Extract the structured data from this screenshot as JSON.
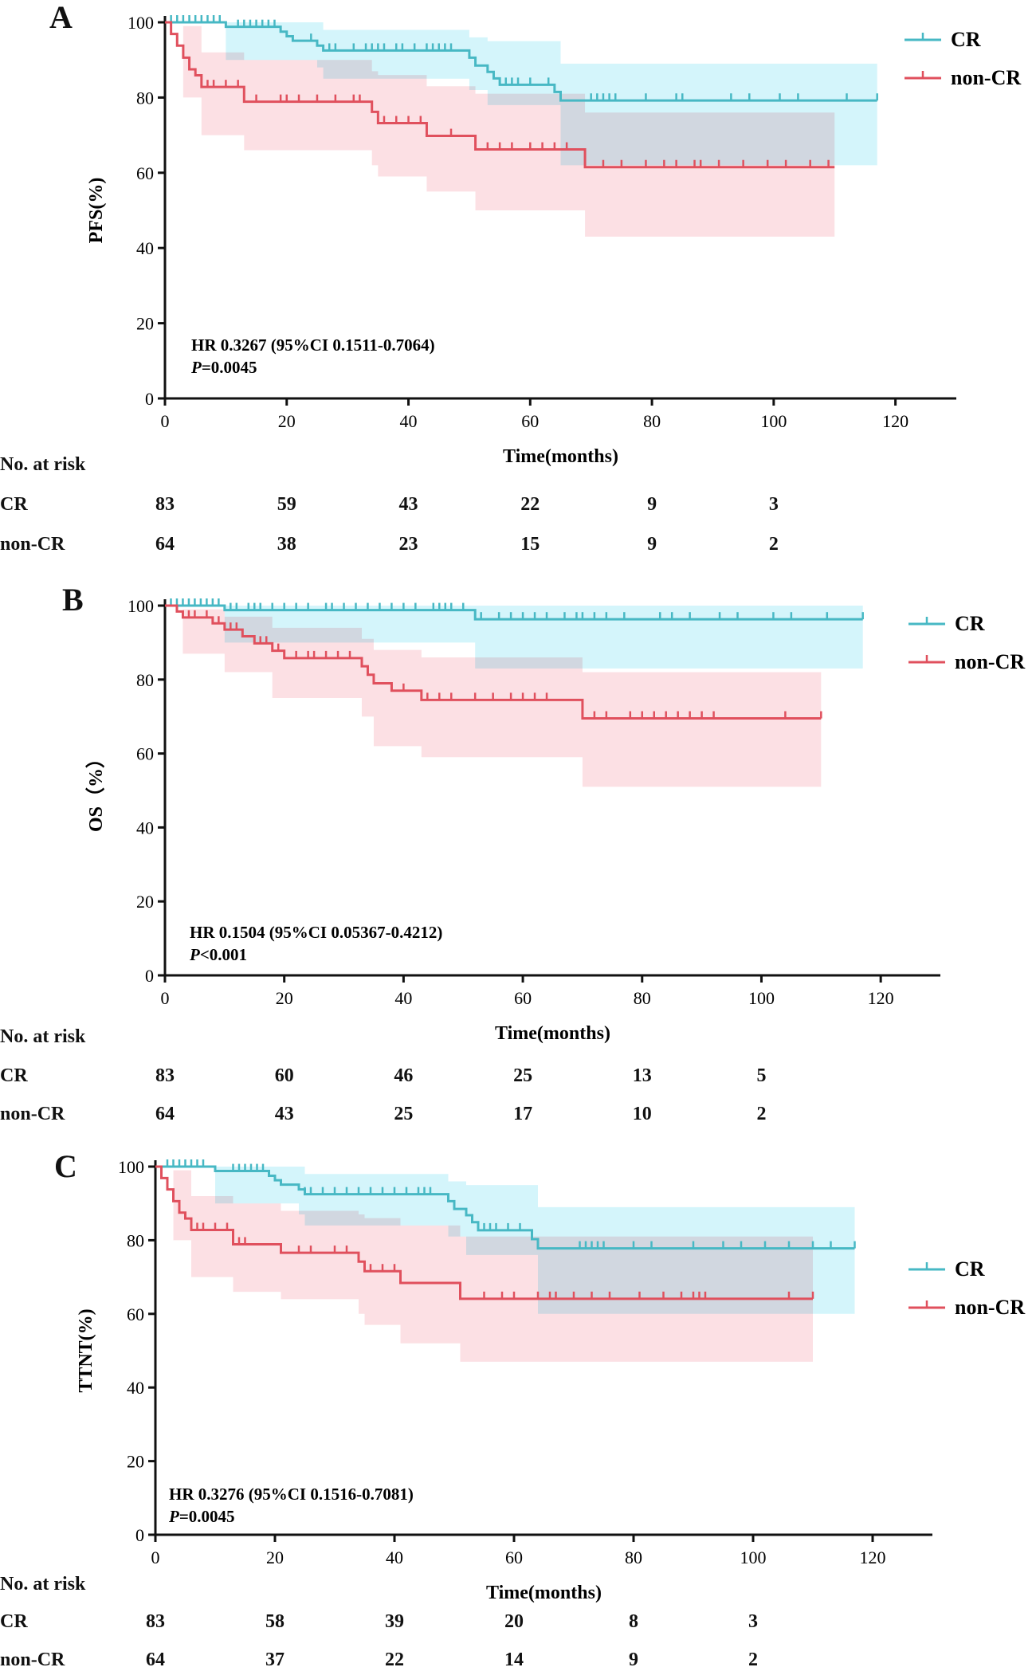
{
  "colors": {
    "cr": "#47b8c4",
    "noncr": "#e0505d",
    "cr_band": "#c6f1fa",
    "noncr_band": "#fbd3d8",
    "overlap": "#d5ccd6",
    "axis": "#111111"
  },
  "chart_data": [
    {
      "type": "line",
      "panel": "A",
      "ylabel": "PFS(%)",
      "xlabel": "Time(months)",
      "xlim": [
        0,
        130
      ],
      "ylim": [
        0,
        100
      ],
      "xticks": [
        0,
        20,
        40,
        60,
        80,
        100,
        120
      ],
      "yticks": [
        0,
        20,
        40,
        60,
        80,
        100
      ],
      "legend": [
        "CR",
        "non-CR"
      ],
      "annotation": {
        "hr": "HR 0.3267 (95%CI 0.1511-0.7064)",
        "p_label": "P",
        "p_value": "=0.0045"
      },
      "series": [
        {
          "name": "CR",
          "steps": [
            [
              0,
              100
            ],
            [
              10,
              98.8
            ],
            [
              19,
              97.5
            ],
            [
              20,
              96.3
            ],
            [
              21,
              95.1
            ],
            [
              25,
              93.8
            ],
            [
              26,
              92.5
            ],
            [
              50,
              90.6
            ],
            [
              51,
              88.5
            ],
            [
              53,
              86.8
            ],
            [
              54,
              85.1
            ],
            [
              55,
              83.4
            ],
            [
              64,
              81.5
            ],
            [
              65,
              79.2
            ],
            [
              117,
              79.2
            ]
          ],
          "ci": [
            [
              0,
              100,
              100
            ],
            [
              10,
              100,
              90
            ],
            [
              25,
              100,
              88
            ],
            [
              26,
              98,
              85
            ],
            [
              50,
              96,
              82
            ],
            [
              53,
              95,
              78
            ],
            [
              65,
              89,
              62
            ],
            [
              117,
              89,
              62
            ]
          ],
          "censor": [
            1,
            2,
            3,
            4,
            5,
            6,
            7,
            8,
            9,
            12,
            13,
            14,
            15,
            16,
            17,
            18,
            24,
            27,
            28,
            31,
            33,
            34,
            35,
            36,
            38,
            39,
            41,
            43,
            44,
            45,
            46,
            47,
            53,
            56,
            57,
            58,
            60,
            63,
            70,
            71,
            72,
            73,
            74,
            79,
            84,
            85,
            93,
            96,
            101,
            104,
            112,
            117
          ]
        },
        {
          "name": "non-CR",
          "steps": [
            [
              0,
              100
            ],
            [
              1,
              96.9
            ],
            [
              2,
              93.8
            ],
            [
              3,
              90.6
            ],
            [
              4,
              87.5
            ],
            [
              5,
              85.9
            ],
            [
              6,
              82.8
            ],
            [
              13,
              78.9
            ],
            [
              34,
              76.2
            ],
            [
              35,
              73.2
            ],
            [
              43,
              69.8
            ],
            [
              51,
              66.2
            ],
            [
              69,
              61.5
            ],
            [
              110,
              61.5
            ]
          ],
          "ci": [
            [
              0,
              100,
              100
            ],
            [
              3,
              99,
              80
            ],
            [
              6,
              92,
              70
            ],
            [
              13,
              90,
              66
            ],
            [
              34,
              87,
              62
            ],
            [
              35,
              86,
              59
            ],
            [
              43,
              83,
              55
            ],
            [
              51,
              81,
              50
            ],
            [
              69,
              76,
              43
            ],
            [
              110,
              76,
              43
            ]
          ],
          "censor": [
            7,
            8,
            10,
            12,
            15,
            19,
            20,
            22,
            25,
            28,
            31,
            32,
            36,
            38,
            40,
            42,
            47,
            53,
            55,
            57,
            60,
            62,
            64,
            66,
            72,
            75,
            79,
            82,
            84,
            87,
            88,
            91,
            95,
            99,
            102,
            106,
            109
          ]
        }
      ],
      "risk_table": {
        "title": "No. at risk",
        "times": [
          0,
          20,
          40,
          60,
          80,
          100
        ],
        "rows": [
          {
            "label": "CR",
            "values": [
              "83",
              "59",
              "43",
              "22",
              "9",
              "3"
            ]
          },
          {
            "label": "non-CR",
            "values": [
              "64",
              "38",
              "23",
              "15",
              "9",
              "2"
            ]
          }
        ]
      }
    },
    {
      "type": "line",
      "panel": "B",
      "ylabel": "OS（%）",
      "xlabel": "Time(months)",
      "xlim": [
        0,
        130
      ],
      "ylim": [
        0,
        100
      ],
      "xticks": [
        0,
        20,
        40,
        60,
        80,
        100,
        120
      ],
      "yticks": [
        0,
        20,
        40,
        60,
        80,
        100
      ],
      "legend": [
        "CR",
        "non-CR"
      ],
      "annotation": {
        "hr": "HR 0.1504 (95%CI 0.05367-0.4212)",
        "p_label": "P",
        "p_value": "<0.001"
      },
      "series": [
        {
          "name": "CR",
          "steps": [
            [
              0,
              100
            ],
            [
              10,
              98.8
            ],
            [
              52,
              96.3
            ],
            [
              117,
              96.3
            ]
          ],
          "ci": [
            [
              0,
              100,
              100
            ],
            [
              10,
              100,
              90
            ],
            [
              52,
              100,
              83
            ],
            [
              117,
              100,
              83
            ]
          ],
          "censor": [
            1,
            2,
            3,
            4,
            5,
            6,
            7,
            8,
            9,
            11,
            12,
            14,
            15,
            16,
            18,
            20,
            22,
            24,
            27,
            28,
            30,
            32,
            34,
            36,
            38,
            40,
            42,
            45,
            46,
            47,
            48,
            50,
            53,
            56,
            58,
            60,
            62,
            64,
            67,
            69,
            70,
            72,
            74,
            77,
            83,
            85,
            88,
            93,
            96,
            102,
            105,
            111,
            117
          ]
        },
        {
          "name": "non-CR",
          "steps": [
            [
              0,
              100
            ],
            [
              2,
              98.4
            ],
            [
              3,
              96.8
            ],
            [
              8,
              95.2
            ],
            [
              10,
              93.5
            ],
            [
              13,
              91.7
            ],
            [
              15,
              89.8
            ],
            [
              18,
              87.8
            ],
            [
              20,
              85.8
            ],
            [
              33,
              83.6
            ],
            [
              34,
              81.3
            ],
            [
              35,
              79
            ],
            [
              38,
              77
            ],
            [
              43,
              74.5
            ],
            [
              70,
              69.5
            ],
            [
              110,
              69.5
            ]
          ],
          "ci": [
            [
              0,
              100,
              100
            ],
            [
              3,
              99,
              87
            ],
            [
              10,
              97,
              82
            ],
            [
              18,
              94,
              75
            ],
            [
              33,
              91,
              70
            ],
            [
              35,
              88,
              62
            ],
            [
              43,
              86,
              59
            ],
            [
              70,
              82,
              51
            ],
            [
              110,
              82,
              51
            ]
          ],
          "censor": [
            4,
            5,
            7,
            9,
            11,
            12,
            16,
            17,
            19,
            22,
            24,
            25,
            27,
            29,
            31,
            33,
            38,
            40,
            44,
            46,
            48,
            52,
            55,
            58,
            60,
            62,
            64,
            72,
            74,
            78,
            80,
            82,
            84,
            86,
            88,
            90,
            92,
            104,
            110
          ]
        }
      ],
      "risk_table": {
        "title": "No. at risk",
        "times": [
          0,
          20,
          40,
          60,
          80,
          100
        ],
        "rows": [
          {
            "label": "CR",
            "values": [
              "83",
              "60",
              "46",
              "25",
              "13",
              "5"
            ]
          },
          {
            "label": "non-CR",
            "values": [
              "64",
              "43",
              "25",
              "17",
              "10",
              "2"
            ]
          }
        ]
      }
    },
    {
      "type": "line",
      "panel": "C",
      "ylabel": "TTNT(%)",
      "xlabel": "Time(months)",
      "xlim": [
        0,
        130
      ],
      "ylim": [
        0,
        100
      ],
      "xticks": [
        0,
        20,
        40,
        60,
        80,
        100,
        120
      ],
      "yticks": [
        0,
        20,
        40,
        60,
        80,
        100
      ],
      "legend": [
        "CR",
        "non-CR"
      ],
      "annotation": {
        "hr": "HR 0.3276 (95%CI 0.1516-0.7081)",
        "p_label": "P",
        "p_value": "=0.0045"
      },
      "series": [
        {
          "name": "CR",
          "steps": [
            [
              0,
              100
            ],
            [
              10,
              98.8
            ],
            [
              19,
              97.5
            ],
            [
              20,
              96.3
            ],
            [
              21,
              95.1
            ],
            [
              24,
              93.8
            ],
            [
              25,
              92.5
            ],
            [
              49,
              90.6
            ],
            [
              50,
              88.5
            ],
            [
              52,
              86.8
            ],
            [
              53,
              84.9
            ],
            [
              54,
              82.7
            ],
            [
              63,
              80.3
            ],
            [
              64,
              77.8
            ],
            [
              117,
              77.8
            ]
          ],
          "ci": [
            [
              0,
              100,
              100
            ],
            [
              10,
              100,
              90
            ],
            [
              24,
              100,
              87
            ],
            [
              25,
              98,
              84
            ],
            [
              49,
              96,
              81
            ],
            [
              52,
              95,
              76
            ],
            [
              64,
              89,
              60
            ],
            [
              117,
              89,
              60
            ]
          ],
          "censor": [
            2,
            3,
            4,
            5,
            6,
            7,
            8,
            13,
            14,
            15,
            16,
            17,
            18,
            25,
            26,
            28,
            30,
            32,
            34,
            36,
            38,
            40,
            42,
            44,
            45,
            46,
            55,
            56,
            57,
            59,
            61,
            63,
            71,
            72,
            73,
            74,
            75,
            80,
            83,
            90,
            95,
            98,
            102,
            106,
            110,
            113,
            117
          ]
        },
        {
          "name": "non-CR",
          "steps": [
            [
              0,
              100
            ],
            [
              1,
              96.9
            ],
            [
              2,
              93.8
            ],
            [
              3,
              90.6
            ],
            [
              4,
              87.5
            ],
            [
              5,
              85.9
            ],
            [
              6,
              82.8
            ],
            [
              13,
              78.9
            ],
            [
              21,
              76.6
            ],
            [
              34,
              74.2
            ],
            [
              35,
              71.6
            ],
            [
              41,
              68.4
            ],
            [
              51,
              64.1
            ],
            [
              110,
              64.1
            ]
          ],
          "ci": [
            [
              0,
              100,
              100
            ],
            [
              3,
              99,
              80
            ],
            [
              6,
              92,
              70
            ],
            [
              13,
              90,
              66
            ],
            [
              21,
              88,
              64
            ],
            [
              34,
              87,
              60
            ],
            [
              35,
              86,
              57
            ],
            [
              41,
              84,
              52
            ],
            [
              51,
              81,
              47
            ],
            [
              110,
              81,
              47
            ]
          ],
          "censor": [
            7,
            8,
            10,
            12,
            14,
            15,
            24,
            26,
            30,
            32,
            36,
            38,
            40,
            41,
            55,
            58,
            60,
            64,
            66,
            67,
            70,
            73,
            76,
            81,
            85,
            88,
            90,
            91,
            92,
            106,
            110
          ]
        }
      ],
      "risk_table": {
        "title": "No. at risk",
        "times": [
          0,
          20,
          40,
          60,
          80,
          100
        ],
        "rows": [
          {
            "label": "CR",
            "values": [
              "83",
              "58",
              "39",
              "20",
              "8",
              "3"
            ]
          },
          {
            "label": "non-CR",
            "values": [
              "64",
              "37",
              "22",
              "14",
              "9",
              "2"
            ]
          }
        ]
      }
    }
  ]
}
